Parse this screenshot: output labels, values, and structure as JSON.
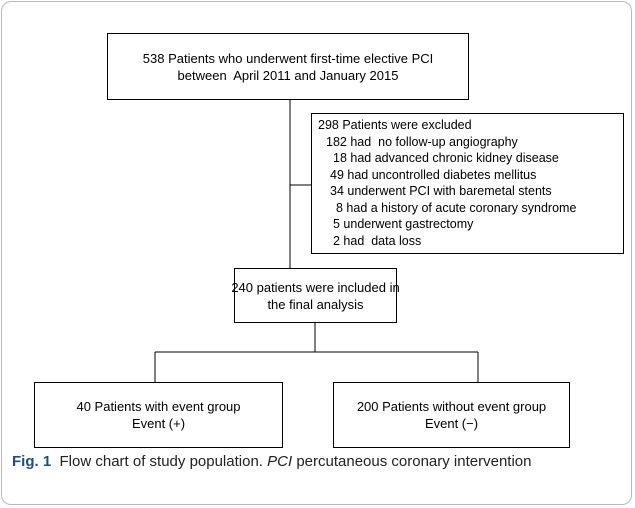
{
  "nodes": [
    {
      "lines": [
        "538 Patients who underwent first-time elective PCI",
        "between  April 2011 and January 2015"
      ]
    },
    {
      "lines": [
        "298 Patients were excluded",
        "182 had  no follow-up angiography",
        "18 had advanced chronic kidney disease",
        "49 had uncontrolled diabetes mellitus",
        "34 underwent PCI with baremetal stents",
        "8 had a history of acute coronary syndrome",
        "5 underwent gastrectomy",
        "2 had  data loss"
      ]
    },
    {
      "lines": [
        "240 patients were included in",
        "the final analysis"
      ]
    },
    {
      "lines": [
        "40 Patients with event group",
        "Event (+)"
      ]
    },
    {
      "lines": [
        "200 Patients without event group",
        "Event (−)"
      ]
    }
  ],
  "caption": {
    "label": "Fig. 1",
    "text": "Flow chart of study population.",
    "abbreviation": "PCI",
    "definition": "percutaneous coronary intervention"
  }
}
